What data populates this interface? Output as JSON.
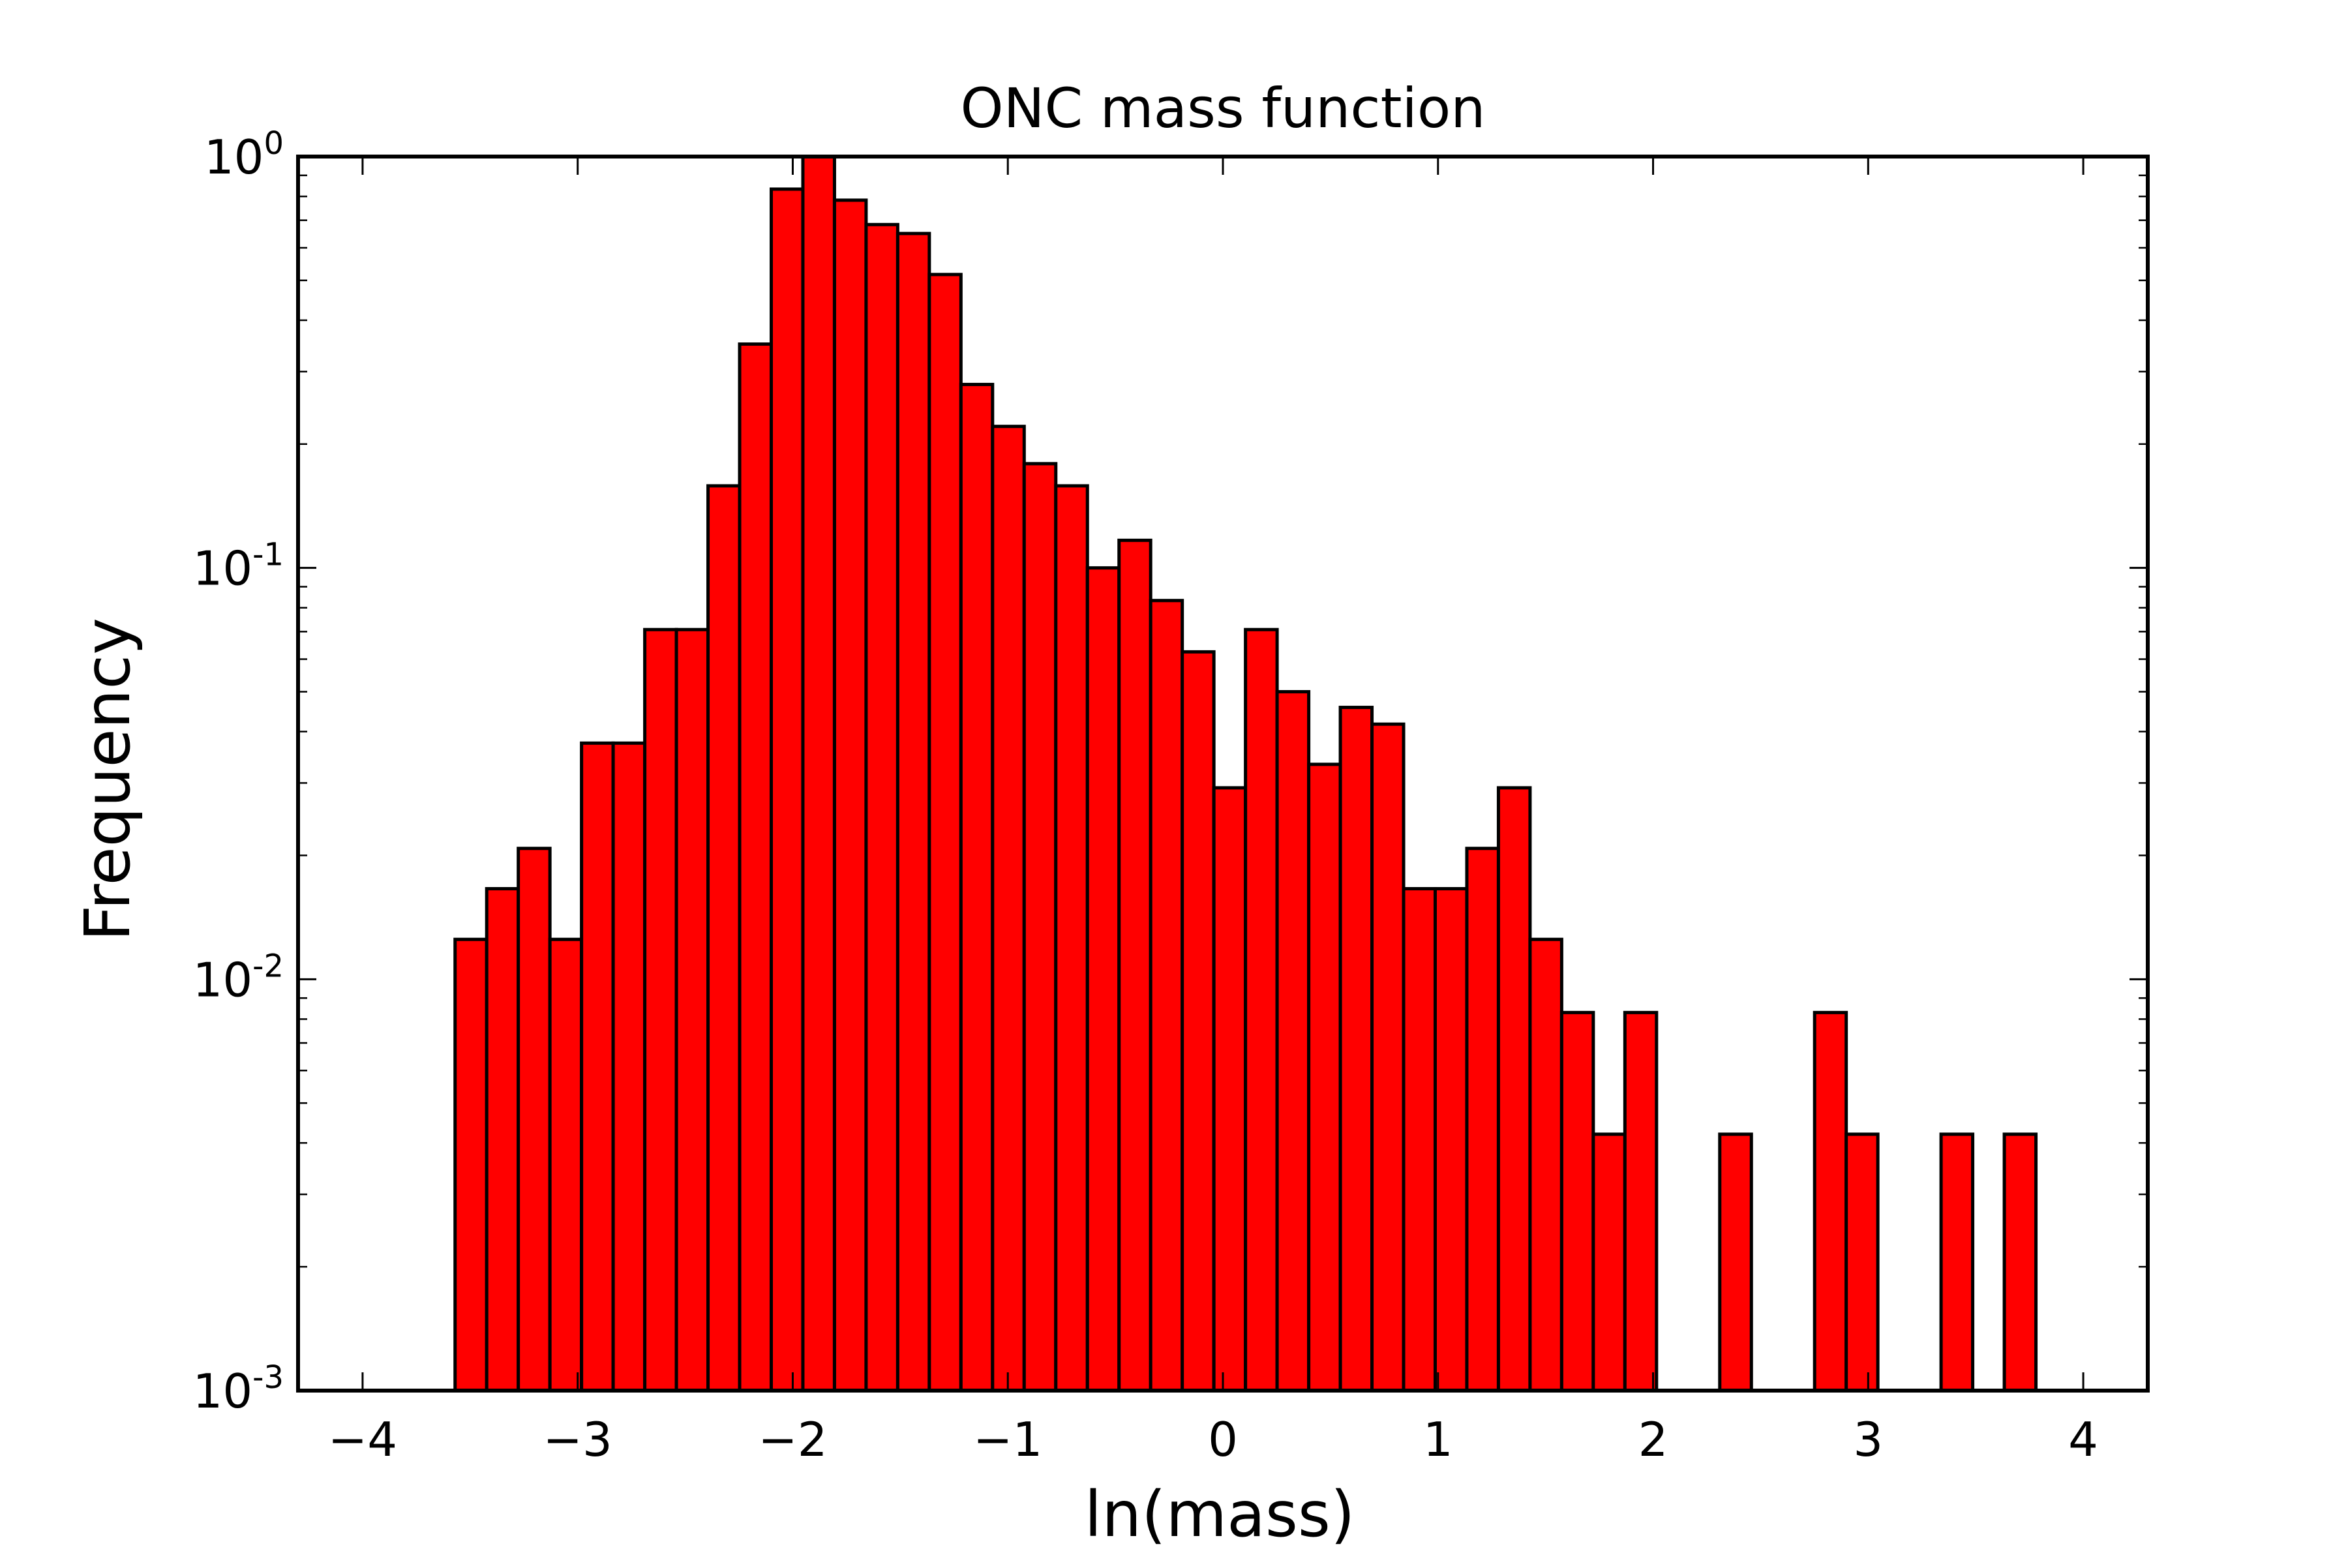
{
  "chart_data": {
    "type": "bar",
    "title": "ONC mass function",
    "xlabel": "ln(mass)",
    "ylabel": "Frequency",
    "xlim": [
      -4.3,
      4.3
    ],
    "ylim": [
      0.001,
      1
    ],
    "yscale": "log",
    "grid": false,
    "legend": "none",
    "bar_color": "#ff0000",
    "edge_color": "#000000",
    "bin_width": 0.147,
    "x_ticks": [
      {
        "value": -4,
        "label": "−4"
      },
      {
        "value": -3,
        "label": "−3"
      },
      {
        "value": -2,
        "label": "−2"
      },
      {
        "value": -1,
        "label": "−1"
      },
      {
        "value": 0,
        "label": "0"
      },
      {
        "value": 1,
        "label": "1"
      },
      {
        "value": 2,
        "label": "2"
      },
      {
        "value": 3,
        "label": "3"
      },
      {
        "value": 4,
        "label": "4"
      }
    ],
    "y_ticks": [
      {
        "value": 0.001,
        "base": "10",
        "exp": "-3"
      },
      {
        "value": 0.01,
        "base": "10",
        "exp": "-2"
      },
      {
        "value": 0.1,
        "base": "10",
        "exp": "-1"
      },
      {
        "value": 1,
        "base": "10",
        "exp": "0"
      }
    ],
    "bars": [
      {
        "x": -3.57,
        "value": 0.0125
      },
      {
        "x": -3.423,
        "value": 0.0166
      },
      {
        "x": -3.276,
        "value": 0.0208
      },
      {
        "x": -3.129,
        "value": 0.0125
      },
      {
        "x": -2.982,
        "value": 0.0375
      },
      {
        "x": -2.835,
        "value": 0.0375
      },
      {
        "x": -2.688,
        "value": 0.0708
      },
      {
        "x": -2.541,
        "value": 0.0708
      },
      {
        "x": -2.394,
        "value": 0.1583
      },
      {
        "x": -2.247,
        "value": 0.35
      },
      {
        "x": -2.1,
        "value": 0.8333
      },
      {
        "x": -1.953,
        "value": 1.0
      },
      {
        "x": -1.806,
        "value": 0.7833
      },
      {
        "x": -1.659,
        "value": 0.6833
      },
      {
        "x": -1.512,
        "value": 0.65
      },
      {
        "x": -1.365,
        "value": 0.5167
      },
      {
        "x": -1.218,
        "value": 0.2792
      },
      {
        "x": -1.071,
        "value": 0.2208
      },
      {
        "x": -0.924,
        "value": 0.1792
      },
      {
        "x": -0.777,
        "value": 0.1583
      },
      {
        "x": -0.63,
        "value": 0.1
      },
      {
        "x": -0.483,
        "value": 0.1167
      },
      {
        "x": -0.336,
        "value": 0.0833
      },
      {
        "x": -0.189,
        "value": 0.0625
      },
      {
        "x": -0.042,
        "value": 0.0292
      },
      {
        "x": 0.105,
        "value": 0.0708
      },
      {
        "x": 0.252,
        "value": 0.05
      },
      {
        "x": 0.399,
        "value": 0.0333
      },
      {
        "x": 0.546,
        "value": 0.0458
      },
      {
        "x": 0.693,
        "value": 0.0417
      },
      {
        "x": 0.84,
        "value": 0.0166
      },
      {
        "x": 0.987,
        "value": 0.0166
      },
      {
        "x": 1.134,
        "value": 0.0208
      },
      {
        "x": 1.281,
        "value": 0.0292
      },
      {
        "x": 1.428,
        "value": 0.0125
      },
      {
        "x": 1.575,
        "value": 0.0083
      },
      {
        "x": 1.722,
        "value": 0.0042
      },
      {
        "x": 1.869,
        "value": 0.0083
      },
      {
        "x": 2.016,
        "value": 0
      },
      {
        "x": 2.163,
        "value": 0
      },
      {
        "x": 2.31,
        "value": 0.0042
      },
      {
        "x": 2.457,
        "value": 0
      },
      {
        "x": 2.604,
        "value": 0
      },
      {
        "x": 2.751,
        "value": 0.0083
      },
      {
        "x": 2.898,
        "value": 0.0042
      },
      {
        "x": 3.045,
        "value": 0
      },
      {
        "x": 3.192,
        "value": 0
      },
      {
        "x": 3.339,
        "value": 0.0042
      },
      {
        "x": 3.486,
        "value": 0
      },
      {
        "x": 3.633,
        "value": 0.0042
      }
    ]
  }
}
